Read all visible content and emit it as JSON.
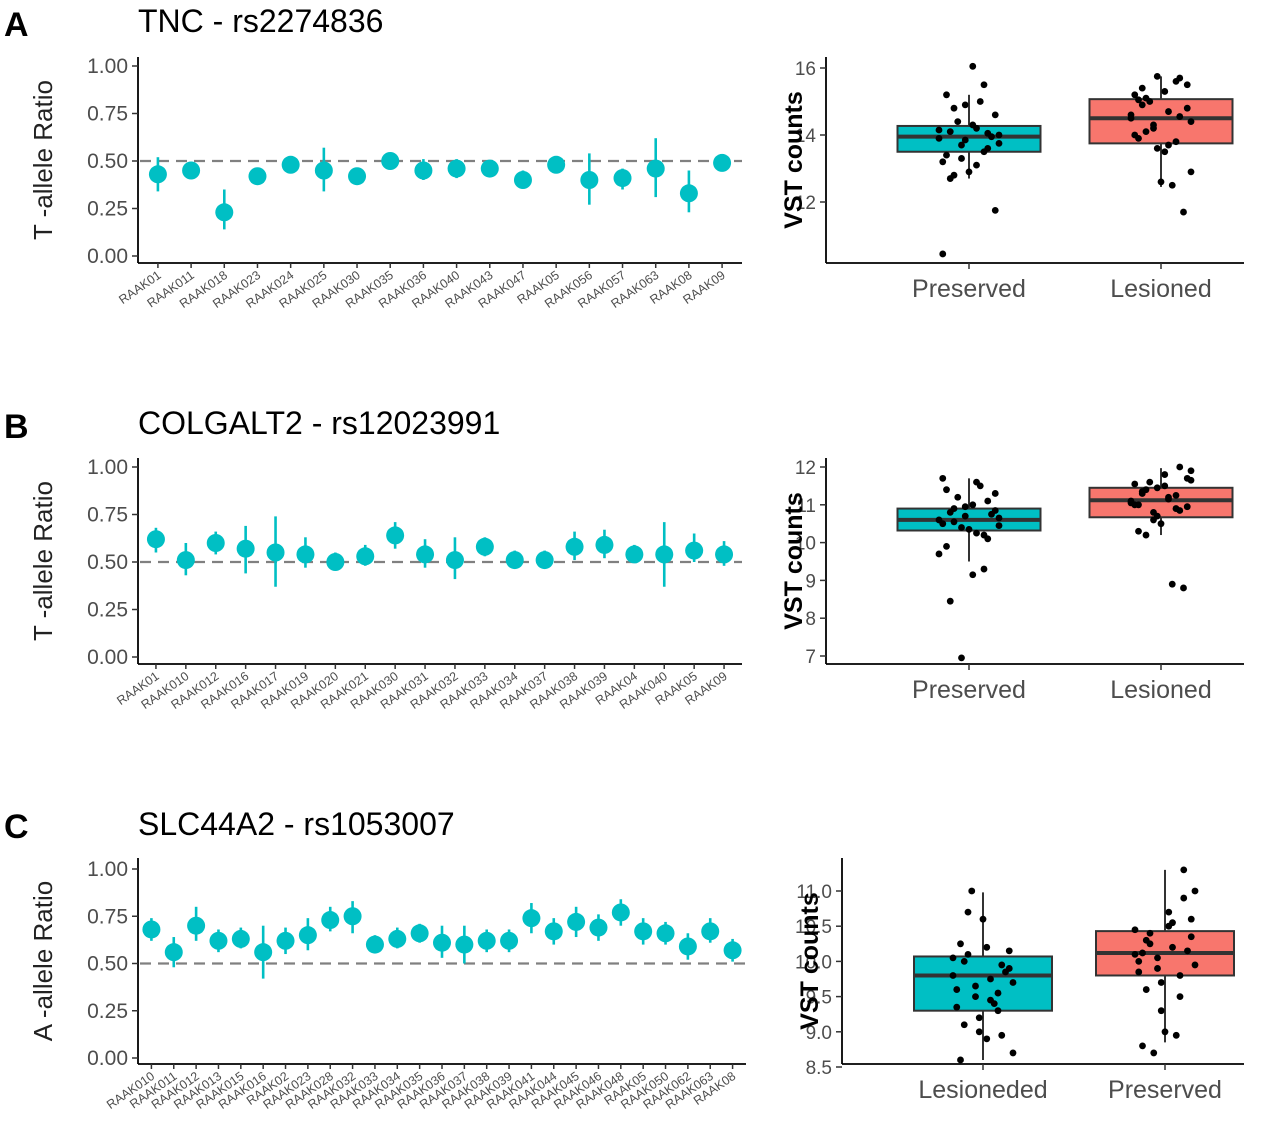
{
  "colors": {
    "teal": "#00bfc4",
    "salmon": "#f8766d",
    "points": "#000000",
    "reference": "#808080"
  },
  "chart_data": [
    {
      "panel": "A",
      "type": "scatter",
      "subtype": "pointrange",
      "title": "TNC - rs2274836",
      "xlabel": "",
      "ylabel": "T -allele Ratio",
      "ylim": [
        0,
        1
      ],
      "yticks": [
        "0.00",
        "0.25",
        "0.50",
        "0.75",
        "1.00"
      ],
      "reference_line": 0.5,
      "categories": [
        "RAAK01",
        "RAAK011",
        "RAAK018",
        "RAAK023",
        "RAAK024",
        "RAAK025",
        "RAAK030",
        "RAAK035",
        "RAAK036",
        "RAAK040",
        "RAAK043",
        "RAAK047",
        "RAAK05",
        "RAAK056",
        "RAAK057",
        "RAAK063",
        "RAAK08",
        "RAAK09"
      ],
      "values": [
        0.43,
        0.45,
        0.23,
        0.42,
        0.48,
        0.45,
        0.42,
        0.5,
        0.45,
        0.46,
        0.46,
        0.4,
        0.48,
        0.4,
        0.41,
        0.46,
        0.33,
        0.49
      ],
      "lower": [
        0.34,
        0.41,
        0.14,
        0.39,
        0.44,
        0.34,
        0.38,
        0.47,
        0.4,
        0.41,
        0.43,
        0.36,
        0.45,
        0.27,
        0.35,
        0.31,
        0.23,
        0.45
      ],
      "upper": [
        0.52,
        0.49,
        0.35,
        0.45,
        0.52,
        0.57,
        0.46,
        0.53,
        0.51,
        0.51,
        0.5,
        0.45,
        0.52,
        0.54,
        0.46,
        0.62,
        0.45,
        0.53
      ]
    },
    {
      "panel": "A",
      "type": "box",
      "xlabel": "",
      "ylabel": "VST counts",
      "ylim": [
        10.3,
        16.4
      ],
      "yticks": [
        "12",
        "14",
        "16"
      ],
      "categories": [
        "Preserved",
        "Lesioned"
      ],
      "box_stats": [
        {
          "q1": 13.5,
          "median": 13.95,
          "q3": 14.27,
          "whisker_low": 12.7,
          "whisker_high": 15.2
        },
        {
          "q1": 13.75,
          "median": 14.5,
          "q3": 15.07,
          "whisker_low": 12.45,
          "whisker_high": 15.75
        }
      ],
      "points": [
        [
          13.9,
          14.1,
          13.7,
          14.3,
          13.5,
          14.6,
          13.2,
          14.8,
          13.85,
          14.2,
          13.6,
          14.0,
          13.4,
          14.4,
          12.9,
          15.0,
          13.95,
          14.15,
          12.7,
          13.3,
          16.05,
          15.5,
          11.75,
          10.45,
          12.8,
          14.9,
          13.1,
          14.05,
          13.75,
          15.2
        ],
        [
          14.5,
          14.9,
          14.2,
          15.3,
          13.8,
          15.5,
          14.0,
          15.1,
          13.6,
          14.7,
          15.7,
          14.4,
          13.9,
          15.0,
          12.6,
          12.5,
          11.7,
          14.6,
          15.4,
          14.3,
          13.5,
          15.6,
          14.8,
          15.2,
          14.1,
          15.75,
          13.7,
          14.55,
          12.9,
          15.05
        ]
      ]
    },
    {
      "panel": "B",
      "type": "scatter",
      "subtype": "pointrange",
      "title": "COLGALT2 - rs12023991",
      "xlabel": "",
      "ylabel": "T -allele Ratio",
      "ylim": [
        0,
        1
      ],
      "yticks": [
        "0.00",
        "0.25",
        "0.50",
        "0.75",
        "1.00"
      ],
      "reference_line": 0.5,
      "categories": [
        "RAAK01",
        "RAAK010",
        "RAAK012",
        "RAAK016",
        "RAAK017",
        "RAAK019",
        "RAAK020",
        "RAAK021",
        "RAAK030",
        "RAAK031",
        "RAAK032",
        "RAAK033",
        "RAAK034",
        "RAAK037",
        "RAAK038",
        "RAAK039",
        "RAAK04",
        "RAAK040",
        "RAAK05",
        "RAAK09"
      ],
      "values": [
        0.62,
        0.51,
        0.6,
        0.57,
        0.55,
        0.54,
        0.5,
        0.53,
        0.64,
        0.54,
        0.51,
        0.58,
        0.51,
        0.51,
        0.58,
        0.59,
        0.54,
        0.54,
        0.56,
        0.54
      ],
      "lower": [
        0.55,
        0.43,
        0.54,
        0.44,
        0.37,
        0.47,
        0.46,
        0.48,
        0.57,
        0.47,
        0.41,
        0.53,
        0.47,
        0.47,
        0.51,
        0.52,
        0.5,
        0.37,
        0.5,
        0.48
      ],
      "upper": [
        0.68,
        0.6,
        0.66,
        0.69,
        0.74,
        0.63,
        0.55,
        0.59,
        0.71,
        0.62,
        0.63,
        0.63,
        0.56,
        0.56,
        0.66,
        0.67,
        0.59,
        0.71,
        0.65,
        0.61
      ]
    },
    {
      "panel": "B",
      "type": "box",
      "xlabel": "",
      "ylabel": "VST counts",
      "ylim": [
        6.8,
        12.2
      ],
      "yticks": [
        "7",
        "8",
        "9",
        "10",
        "11",
        "12"
      ],
      "categories": [
        "Preserved",
        "Lesioned"
      ],
      "box_stats": [
        {
          "q1": 10.32,
          "median": 10.6,
          "q3": 10.9,
          "whisker_low": 9.5,
          "whisker_high": 11.7
        },
        {
          "q1": 10.67,
          "median": 11.12,
          "q3": 11.45,
          "whisker_low": 10.2,
          "whisker_high": 11.97
        }
      ],
      "points": [
        [
          10.6,
          10.8,
          10.4,
          11.0,
          10.2,
          11.3,
          10.5,
          10.9,
          10.7,
          11.6,
          10.1,
          10.65,
          9.9,
          11.2,
          10.35,
          11.5,
          10.75,
          9.7,
          8.45,
          6.95,
          9.15,
          9.3,
          10.85,
          11.7,
          10.55,
          10.95,
          10.25,
          11.1,
          10.45,
          11.4
        ],
        [
          11.1,
          11.3,
          10.8,
          11.5,
          10.9,
          11.7,
          11.0,
          11.4,
          10.7,
          11.2,
          12.0,
          11.9,
          10.3,
          11.6,
          10.5,
          8.9,
          8.8,
          11.05,
          11.35,
          10.6,
          11.8,
          11.25,
          10.95,
          11.55,
          10.2,
          11.45,
          11.15,
          10.85,
          11.65,
          11.0
        ]
      ]
    },
    {
      "panel": "C",
      "type": "scatter",
      "subtype": "pointrange",
      "title": "SLC44A2 - rs1053007",
      "xlabel": "",
      "ylabel": "A -allele Ratio",
      "ylim": [
        0,
        1
      ],
      "yticks": [
        "0.00",
        "0.25",
        "0.50",
        "0.75",
        "1.00"
      ],
      "reference_line": 0.5,
      "categories": [
        "RAAK010",
        "RAAK011",
        "RAAK012",
        "RAAK013",
        "RAAK015",
        "RAAK016",
        "RAAK02",
        "RAAK023",
        "RAAK028",
        "RAAK032",
        "RAAK033",
        "RAAK034",
        "RAAK035",
        "RAAK036",
        "RAAK037",
        "RAAK038",
        "RAAK039",
        "RAAK041",
        "RAAK044",
        "RAAK045",
        "RAAK046",
        "RAAK048",
        "RAAK05",
        "RAAK050",
        "RAAK062",
        "RAAK063",
        "RAAK08"
      ],
      "values": [
        0.68,
        0.56,
        0.7,
        0.62,
        0.63,
        0.56,
        0.62,
        0.65,
        0.73,
        0.75,
        0.6,
        0.63,
        0.66,
        0.61,
        0.6,
        0.62,
        0.62,
        0.74,
        0.67,
        0.72,
        0.69,
        0.77,
        0.67,
        0.66,
        0.59,
        0.67,
        0.57
      ],
      "lower": [
        0.62,
        0.48,
        0.62,
        0.56,
        0.58,
        0.42,
        0.55,
        0.57,
        0.67,
        0.66,
        0.56,
        0.58,
        0.61,
        0.53,
        0.5,
        0.56,
        0.56,
        0.66,
        0.6,
        0.64,
        0.62,
        0.7,
        0.6,
        0.6,
        0.52,
        0.61,
        0.51
      ],
      "upper": [
        0.74,
        0.64,
        0.8,
        0.68,
        0.69,
        0.7,
        0.69,
        0.74,
        0.8,
        0.83,
        0.65,
        0.69,
        0.71,
        0.7,
        0.7,
        0.68,
        0.68,
        0.82,
        0.74,
        0.8,
        0.76,
        0.84,
        0.74,
        0.72,
        0.66,
        0.74,
        0.63
      ]
    },
    {
      "panel": "C",
      "type": "box",
      "xlabel": "",
      "ylabel": "VST counts",
      "ylim": [
        8.5,
        11.5
      ],
      "yticks": [
        "8.5",
        "9.0",
        "9.5",
        "10.0",
        "10.5",
        "11.0"
      ],
      "categories": [
        "Lesioneded",
        "Preserved"
      ],
      "box_stats": [
        {
          "q1": 9.3,
          "median": 9.8,
          "q3": 10.07,
          "whisker_low": 8.6,
          "whisker_high": 10.98
        },
        {
          "q1": 9.8,
          "median": 10.12,
          "q3": 10.43,
          "whisker_low": 8.85,
          "whisker_high": 11.3
        }
      ],
      "points": [
        [
          9.8,
          10.0,
          9.5,
          10.2,
          9.3,
          9.9,
          9.6,
          10.1,
          9.2,
          9.75,
          8.95,
          8.7,
          8.6,
          11.0,
          10.6,
          9.4,
          9.85,
          10.05,
          9.1,
          9.65,
          8.9,
          9.55,
          10.15,
          9.35,
          10.7,
          9.0,
          9.45,
          9.95,
          9.7,
          10.25
        ],
        [
          10.1,
          10.3,
          9.9,
          10.5,
          9.8,
          10.6,
          10.0,
          10.4,
          9.7,
          10.2,
          11.3,
          11.0,
          8.8,
          8.7,
          9.0,
          8.95,
          10.15,
          10.45,
          9.6,
          10.05,
          10.7,
          9.5,
          10.35,
          9.85,
          10.25,
          9.3,
          10.55,
          10.9,
          9.95,
          10.12
        ]
      ]
    }
  ]
}
